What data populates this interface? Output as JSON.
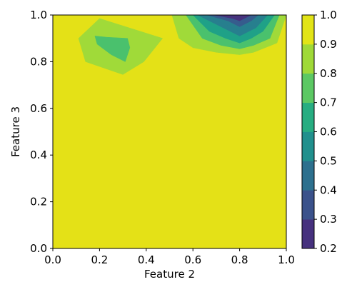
{
  "chart_data": {
    "type": "filled-contour",
    "xlabel": "Feature 2",
    "ylabel": "Feature 3",
    "xlim": [
      0.0,
      1.0
    ],
    "ylim": [
      0.0,
      1.0
    ],
    "x_ticks": [
      "0.0",
      "0.2",
      "0.4",
      "0.6",
      "0.8",
      "1.0"
    ],
    "y_ticks": [
      "0.0",
      "0.2",
      "0.4",
      "0.6",
      "0.8",
      "1.0"
    ],
    "x_tick_values": [
      0.0,
      0.2,
      0.4,
      0.6,
      0.8,
      1.0
    ],
    "y_tick_values": [
      0.0,
      0.2,
      0.4,
      0.6,
      0.8,
      1.0
    ],
    "grid": false,
    "colormap": "viridis",
    "colorbar": {
      "range": [
        0.2,
        1.0
      ],
      "ticks": [
        "0.2",
        "0.3",
        "0.4",
        "0.5",
        "0.6",
        "0.7",
        "0.8",
        "0.9",
        "1.0"
      ],
      "tick_values": [
        0.2,
        0.3,
        0.4,
        0.5,
        0.6,
        0.7,
        0.8,
        0.9,
        1.0
      ],
      "level_colors": [
        "#46337e",
        "#365c8d",
        "#277f8e",
        "#1fa187",
        "#4ac16d",
        "#a0da39",
        "#e4e117",
        "#e4e117"
      ],
      "band_colors": [
        "#46317e",
        "#3b528b",
        "#2d708e",
        "#21908d",
        "#27ad81",
        "#5cc863",
        "#9fd938",
        "#e2e417"
      ]
    },
    "levels": [
      {
        "value": 0.9,
        "color": "#a0da39",
        "regions": [
          [
            [
              0.11,
              0.9
            ],
            [
              0.2,
              0.985
            ],
            [
              0.47,
              0.9
            ],
            [
              0.39,
              0.8
            ],
            [
              0.3,
              0.745
            ],
            [
              0.14,
              0.8
            ]
          ],
          [
            [
              0.51,
              1.0
            ],
            [
              1.0,
              1.0
            ],
            [
              0.96,
              0.88
            ],
            [
              0.86,
              0.84
            ],
            [
              0.8,
              0.83
            ],
            [
              0.7,
              0.84
            ],
            [
              0.6,
              0.86
            ],
            [
              0.54,
              0.9
            ]
          ]
        ]
      },
      {
        "value": 0.8,
        "color": "#4ac16d",
        "regions": [
          [
            [
              0.18,
              0.91
            ],
            [
              0.23,
              0.905
            ],
            [
              0.32,
              0.9
            ],
            [
              0.33,
              0.86
            ],
            [
              0.31,
              0.8
            ],
            [
              0.25,
              0.83
            ],
            [
              0.19,
              0.875
            ]
          ],
          [
            [
              0.57,
              1.0
            ],
            [
              0.97,
              1.0
            ],
            [
              0.93,
              0.9
            ],
            [
              0.86,
              0.87
            ],
            [
              0.8,
              0.855
            ],
            [
              0.72,
              0.87
            ],
            [
              0.64,
              0.9
            ]
          ]
        ]
      },
      {
        "value": 0.7,
        "color": "#1fa187",
        "regions": [
          [
            [
              0.6,
              1.0
            ],
            [
              0.95,
              1.0
            ],
            [
              0.9,
              0.93
            ],
            [
              0.85,
              0.9
            ],
            [
              0.8,
              0.88
            ],
            [
              0.74,
              0.9
            ],
            [
              0.67,
              0.93
            ]
          ]
        ]
      },
      {
        "value": 0.6,
        "color": "#277f8e",
        "regions": [
          [
            [
              0.62,
              1.0
            ],
            [
              0.92,
              1.0
            ],
            [
              0.87,
              0.945
            ],
            [
              0.8,
              0.91
            ],
            [
              0.73,
              0.945
            ]
          ]
        ]
      },
      {
        "value": 0.5,
        "color": "#277f8e",
        "regions": [
          [
            [
              0.64,
              1.0
            ],
            [
              0.9,
              1.0
            ],
            [
              0.86,
              0.96
            ],
            [
              0.8,
              0.93
            ],
            [
              0.74,
              0.96
            ]
          ]
        ]
      },
      {
        "value": 0.4,
        "color": "#365c8d",
        "regions": [
          [
            [
              0.66,
              1.0
            ],
            [
              0.88,
              1.0
            ],
            [
              0.85,
              0.975
            ],
            [
              0.8,
              0.95
            ],
            [
              0.75,
              0.975
            ]
          ]
        ]
      },
      {
        "value": 0.3,
        "color": "#46337e",
        "regions": [
          [
            [
              0.69,
              1.0
            ],
            [
              0.85,
              1.0
            ],
            [
              0.82,
              0.985
            ],
            [
              0.8,
              0.975
            ],
            [
              0.77,
              0.985
            ]
          ]
        ]
      }
    ],
    "background_color": "#e4e117"
  }
}
